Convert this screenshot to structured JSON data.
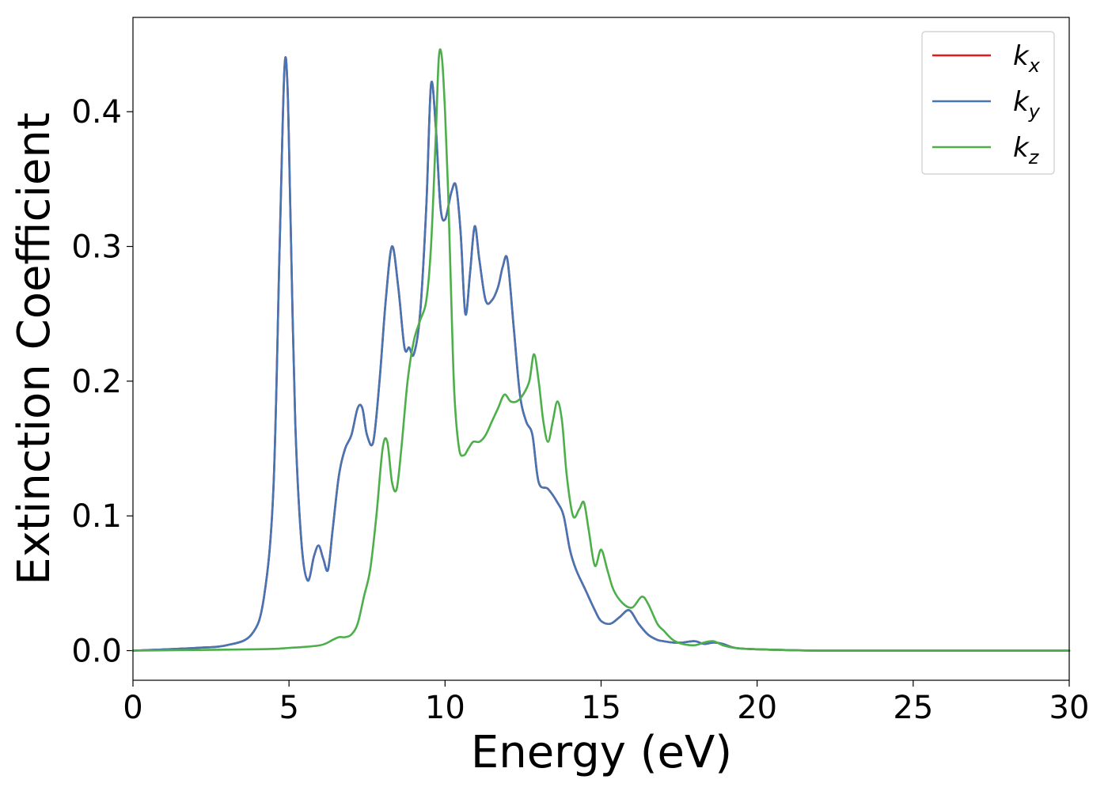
{
  "chart_data": {
    "type": "line",
    "xlabel": "Energy (eV)",
    "ylabel": "Extinction Coefficient",
    "xlim": [
      0,
      30
    ],
    "ylim": [
      -0.022,
      0.47
    ],
    "xticks": [
      "0",
      "5",
      "10",
      "15",
      "20",
      "25",
      "30"
    ],
    "yticks": [
      "0.0",
      "0.1",
      "0.2",
      "0.3",
      "0.4"
    ],
    "grid": false,
    "legend_position": "top-right",
    "series": [
      {
        "name": "k_x",
        "label_base": "k",
        "label_sub": "x",
        "color": "#e41a1c",
        "x": [
          0,
          2,
          3,
          3.8,
          4.2,
          4.5,
          4.7,
          4.85,
          4.95,
          5.05,
          5.2,
          5.4,
          5.6,
          5.8,
          5.95,
          6.1,
          6.25,
          6.4,
          6.6,
          6.8,
          7.0,
          7.2,
          7.35,
          7.5,
          7.7,
          7.9,
          8.1,
          8.3,
          8.5,
          8.7,
          8.85,
          9.0,
          9.2,
          9.4,
          9.55,
          9.7,
          9.85,
          10.0,
          10.2,
          10.35,
          10.5,
          10.65,
          10.8,
          10.95,
          11.1,
          11.3,
          11.5,
          11.7,
          11.85,
          12.0,
          12.2,
          12.4,
          12.6,
          12.8,
          13.0,
          13.3,
          13.6,
          13.8,
          14.0,
          14.2,
          14.5,
          14.8,
          15.0,
          15.3,
          15.6,
          15.9,
          16.2,
          16.5,
          16.8,
          17.0,
          17.3,
          17.6,
          18.0,
          18.3,
          18.6,
          18.9,
          19.3,
          20,
          22,
          25,
          30
        ],
        "y": [
          0.0,
          0.002,
          0.004,
          0.012,
          0.04,
          0.12,
          0.3,
          0.43,
          0.42,
          0.32,
          0.17,
          0.08,
          0.052,
          0.07,
          0.078,
          0.068,
          0.06,
          0.09,
          0.13,
          0.15,
          0.16,
          0.18,
          0.18,
          0.16,
          0.155,
          0.2,
          0.26,
          0.3,
          0.27,
          0.225,
          0.225,
          0.22,
          0.25,
          0.33,
          0.42,
          0.39,
          0.33,
          0.32,
          0.34,
          0.345,
          0.31,
          0.25,
          0.28,
          0.315,
          0.29,
          0.26,
          0.26,
          0.27,
          0.285,
          0.29,
          0.24,
          0.19,
          0.17,
          0.16,
          0.125,
          0.12,
          0.11,
          0.1,
          0.075,
          0.06,
          0.045,
          0.03,
          0.022,
          0.02,
          0.025,
          0.03,
          0.02,
          0.012,
          0.008,
          0.007,
          0.006,
          0.006,
          0.007,
          0.005,
          0.006,
          0.005,
          0.002,
          0.001,
          0.0,
          0.0,
          0.0
        ]
      },
      {
        "name": "k_y",
        "label_base": "k",
        "label_sub": "y",
        "color": "#4575b4",
        "x": [
          0,
          2,
          3,
          3.8,
          4.2,
          4.5,
          4.7,
          4.85,
          4.95,
          5.05,
          5.2,
          5.4,
          5.6,
          5.8,
          5.95,
          6.1,
          6.25,
          6.4,
          6.6,
          6.8,
          7.0,
          7.2,
          7.35,
          7.5,
          7.7,
          7.9,
          8.1,
          8.3,
          8.5,
          8.7,
          8.85,
          9.0,
          9.2,
          9.4,
          9.55,
          9.7,
          9.85,
          10.0,
          10.2,
          10.35,
          10.5,
          10.65,
          10.8,
          10.95,
          11.1,
          11.3,
          11.5,
          11.7,
          11.85,
          12.0,
          12.2,
          12.4,
          12.6,
          12.8,
          13.0,
          13.3,
          13.6,
          13.8,
          14.0,
          14.2,
          14.5,
          14.8,
          15.0,
          15.3,
          15.6,
          15.9,
          16.2,
          16.5,
          16.8,
          17.0,
          17.3,
          17.6,
          18.0,
          18.3,
          18.6,
          18.9,
          19.3,
          20,
          22,
          25,
          30
        ],
        "y": [
          0.0,
          0.002,
          0.004,
          0.012,
          0.04,
          0.12,
          0.3,
          0.43,
          0.42,
          0.32,
          0.17,
          0.08,
          0.052,
          0.07,
          0.078,
          0.068,
          0.06,
          0.09,
          0.13,
          0.15,
          0.16,
          0.18,
          0.18,
          0.16,
          0.155,
          0.2,
          0.26,
          0.3,
          0.27,
          0.225,
          0.225,
          0.22,
          0.25,
          0.33,
          0.42,
          0.39,
          0.33,
          0.32,
          0.34,
          0.345,
          0.31,
          0.25,
          0.28,
          0.315,
          0.29,
          0.26,
          0.26,
          0.27,
          0.285,
          0.29,
          0.24,
          0.19,
          0.17,
          0.16,
          0.125,
          0.12,
          0.11,
          0.1,
          0.075,
          0.06,
          0.045,
          0.03,
          0.022,
          0.02,
          0.025,
          0.03,
          0.02,
          0.012,
          0.008,
          0.007,
          0.006,
          0.006,
          0.007,
          0.005,
          0.006,
          0.005,
          0.002,
          0.001,
          0.0,
          0.0,
          0.0
        ]
      },
      {
        "name": "k_z",
        "label_base": "k",
        "label_sub": "z",
        "color": "#4daf4a",
        "x": [
          0,
          4,
          5,
          6,
          6.4,
          6.6,
          6.8,
          7.0,
          7.2,
          7.4,
          7.6,
          7.8,
          8.0,
          8.15,
          8.3,
          8.45,
          8.6,
          8.8,
          9.0,
          9.2,
          9.4,
          9.55,
          9.7,
          9.8,
          9.9,
          10.0,
          10.1,
          10.2,
          10.3,
          10.45,
          10.6,
          10.75,
          10.9,
          11.1,
          11.3,
          11.5,
          11.7,
          11.9,
          12.1,
          12.3,
          12.5,
          12.7,
          12.85,
          13.0,
          13.15,
          13.3,
          13.45,
          13.6,
          13.75,
          13.9,
          14.1,
          14.3,
          14.45,
          14.6,
          14.8,
          15.0,
          15.2,
          15.4,
          15.7,
          16.0,
          16.3,
          16.5,
          16.8,
          17.0,
          17.3,
          17.6,
          18.0,
          18.3,
          18.6,
          18.9,
          19.3,
          20,
          22,
          25,
          30
        ],
        "y": [
          0.0,
          0.001,
          0.002,
          0.004,
          0.008,
          0.01,
          0.01,
          0.012,
          0.02,
          0.04,
          0.06,
          0.1,
          0.15,
          0.155,
          0.125,
          0.12,
          0.15,
          0.2,
          0.23,
          0.245,
          0.26,
          0.3,
          0.38,
          0.44,
          0.44,
          0.4,
          0.34,
          0.26,
          0.19,
          0.15,
          0.145,
          0.15,
          0.155,
          0.155,
          0.16,
          0.17,
          0.18,
          0.19,
          0.185,
          0.185,
          0.19,
          0.2,
          0.22,
          0.2,
          0.17,
          0.155,
          0.17,
          0.185,
          0.17,
          0.13,
          0.1,
          0.105,
          0.11,
          0.09,
          0.063,
          0.075,
          0.06,
          0.045,
          0.035,
          0.032,
          0.04,
          0.035,
          0.02,
          0.015,
          0.008,
          0.005,
          0.004,
          0.006,
          0.007,
          0.004,
          0.002,
          0.001,
          0.0,
          0.0,
          0.0
        ]
      }
    ]
  }
}
